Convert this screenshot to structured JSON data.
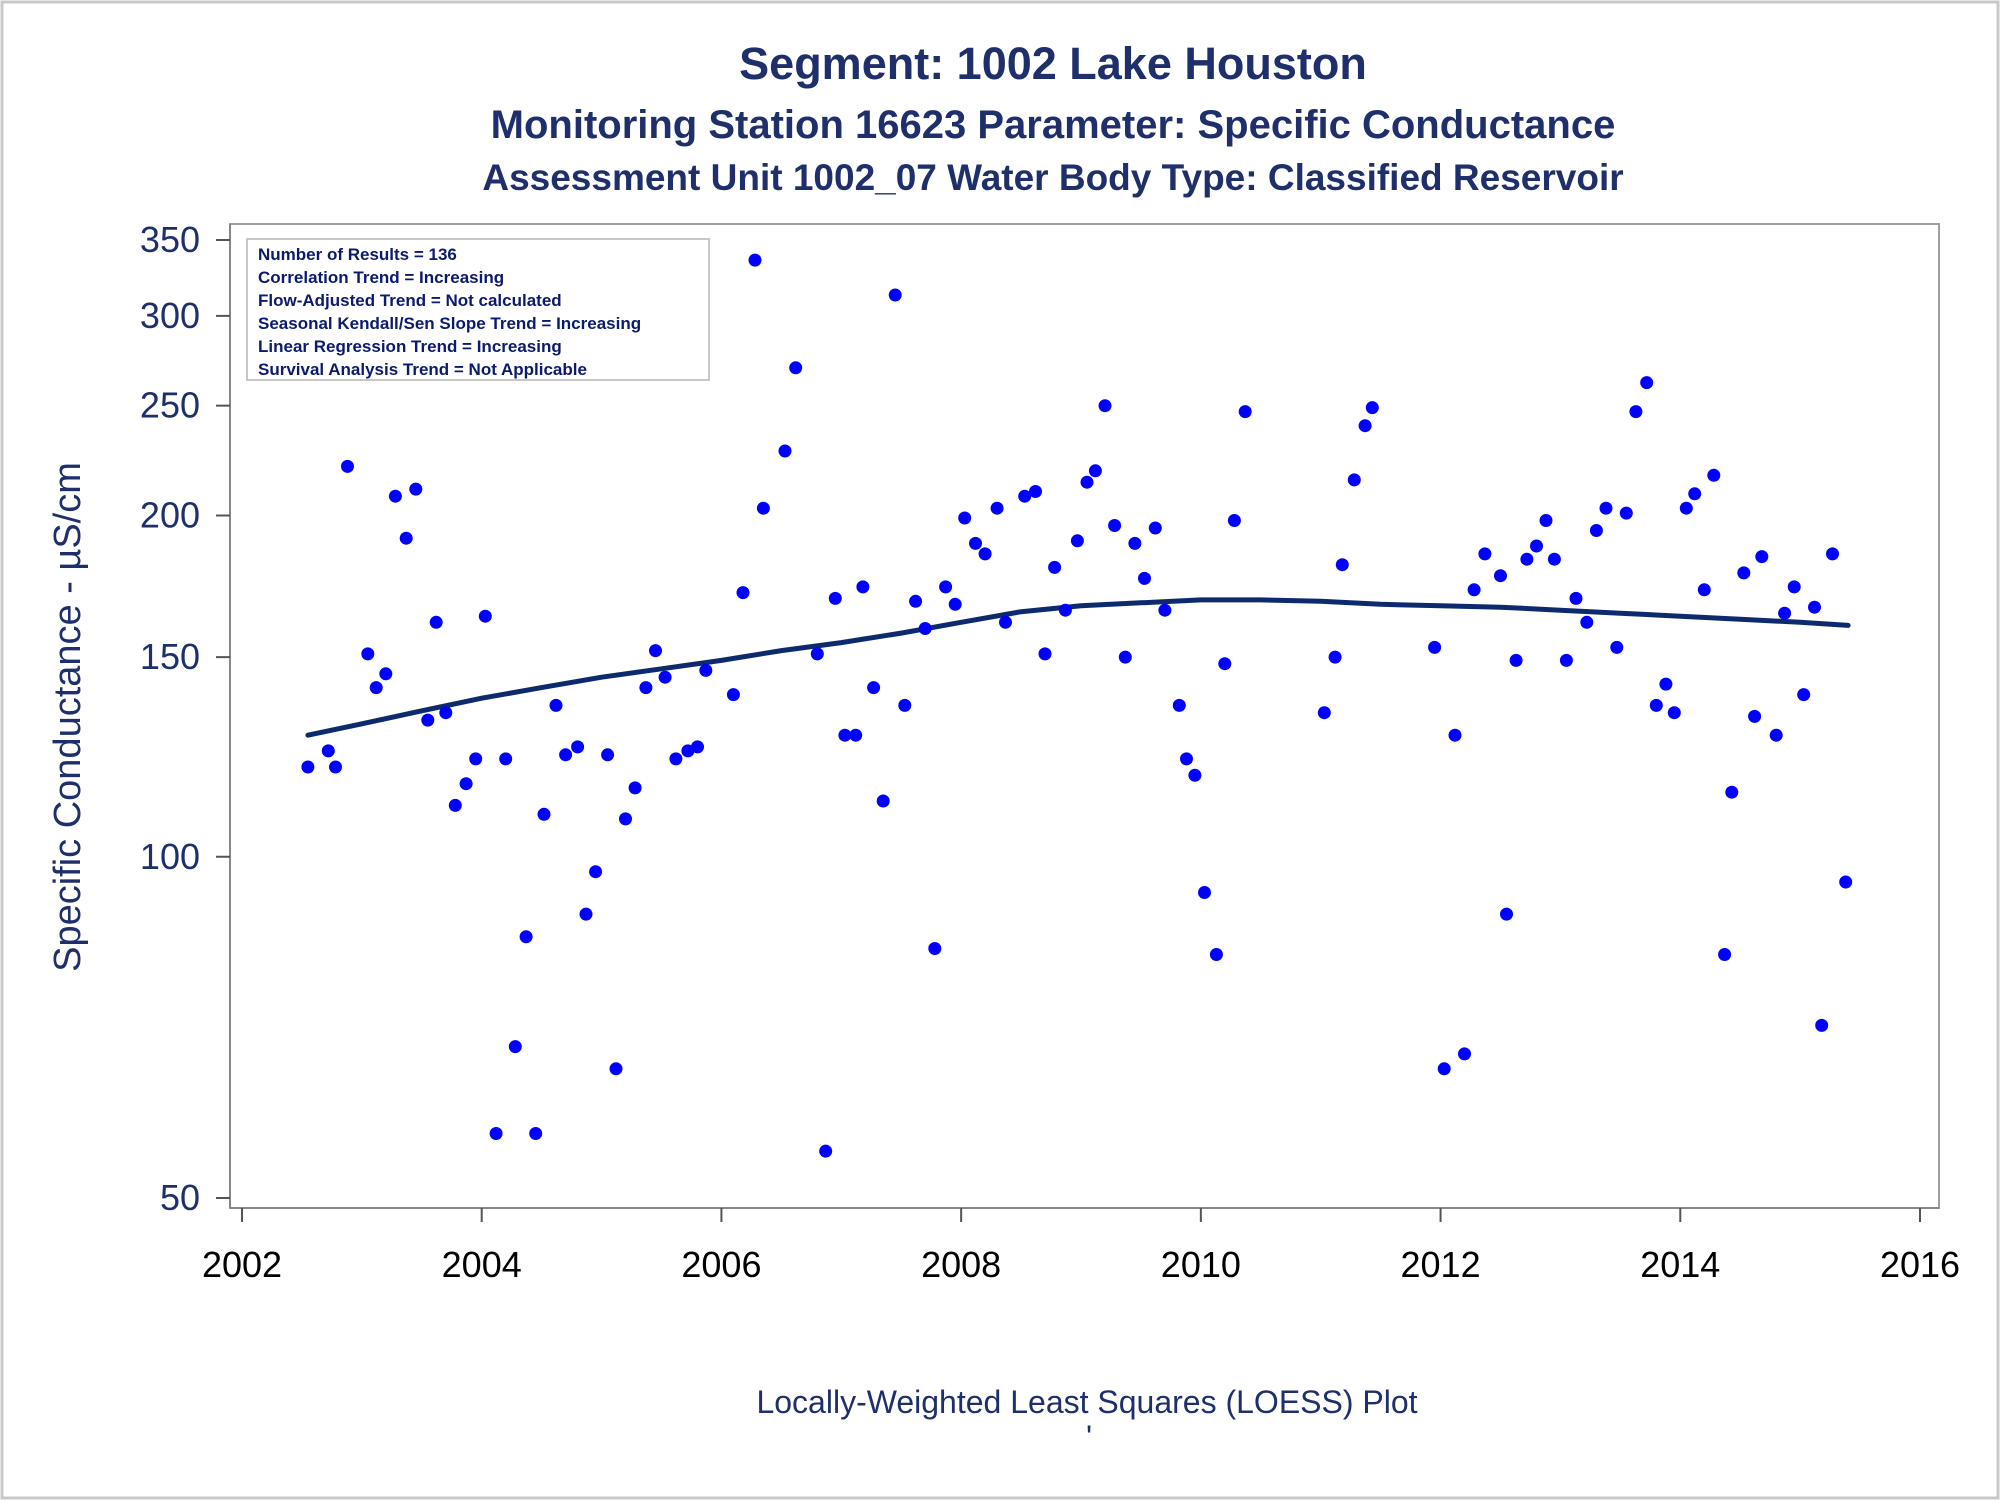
{
  "colors": {
    "text": "#1f2f6b",
    "point": "#0000ff",
    "line": "#0d2a6e",
    "frame": "#a0a0a0"
  },
  "chart_data": {
    "type": "scatter",
    "title": "Segment: 1002  Lake Houston",
    "subtitle": "Monitoring Station 16623 Parameter: Specific Conductance",
    "subtitle2": "Assessment Unit 1002_07   Water Body Type: Classified Reservoir",
    "xlabel": "Locally-Weighted Least Squares (LOESS) Plot",
    "ylabel": "Specific Conductance -  µS/cm",
    "footnote": "'",
    "yscale": "log",
    "xlim": [
      2002,
      2016
    ],
    "ylim": [
      50,
      350
    ],
    "xticks": [
      "2002",
      "2004",
      "2006",
      "2008",
      "2010",
      "2012",
      "2014",
      "2016"
    ],
    "yticks": [
      "50",
      "100",
      "150",
      "200",
      "250",
      "300",
      "350"
    ],
    "stats_box": [
      "Number of Results = 136",
      "Correlation Trend = Increasing",
      "Flow-Adjusted Trend = Not calculated",
      "Seasonal Kendall/Sen Slope Trend = Increasing",
      "Linear Regression Trend = Increasing",
      "Survival Analysis Trend = Not Applicable"
    ],
    "series": [
      {
        "type": "scatter",
        "points": [
          [
            2002.55,
            120
          ],
          [
            2002.72,
            124
          ],
          [
            2002.78,
            120
          ],
          [
            2002.88,
            221
          ],
          [
            2003.05,
            151
          ],
          [
            2003.12,
            141
          ],
          [
            2003.2,
            145
          ],
          [
            2003.28,
            208
          ],
          [
            2003.37,
            191
          ],
          [
            2003.45,
            211
          ],
          [
            2003.55,
            132
          ],
          [
            2003.62,
            161
          ],
          [
            2003.7,
            134
          ],
          [
            2003.78,
            111
          ],
          [
            2003.87,
            116
          ],
          [
            2003.95,
            122
          ],
          [
            2004.03,
            163
          ],
          [
            2004.12,
            57
          ],
          [
            2004.2,
            122
          ],
          [
            2004.28,
            68
          ],
          [
            2004.37,
            85
          ],
          [
            2004.45,
            57
          ],
          [
            2004.52,
            109
          ],
          [
            2004.62,
            136
          ],
          [
            2004.7,
            123
          ],
          [
            2004.8,
            125
          ],
          [
            2004.87,
            89
          ],
          [
            2004.95,
            97
          ],
          [
            2005.05,
            123
          ],
          [
            2005.12,
            65
          ],
          [
            2005.2,
            108
          ],
          [
            2005.28,
            115
          ],
          [
            2005.37,
            141
          ],
          [
            2005.45,
            152
          ],
          [
            2005.53,
            144
          ],
          [
            2005.62,
            122
          ],
          [
            2005.72,
            124
          ],
          [
            2005.8,
            125
          ],
          [
            2005.87,
            146
          ],
          [
            2006.1,
            139
          ],
          [
            2006.18,
            171
          ],
          [
            2006.28,
            336
          ],
          [
            2006.35,
            203
          ],
          [
            2006.53,
            228
          ],
          [
            2006.62,
            270
          ],
          [
            2006.8,
            151
          ],
          [
            2006.87,
            55
          ],
          [
            2006.95,
            169
          ],
          [
            2007.03,
            128
          ],
          [
            2007.12,
            128
          ],
          [
            2007.18,
            173
          ],
          [
            2007.27,
            141
          ],
          [
            2007.35,
            112
          ],
          [
            2007.45,
            313
          ],
          [
            2007.53,
            136
          ],
          [
            2007.62,
            168
          ],
          [
            2007.7,
            159
          ],
          [
            2007.78,
            83
          ],
          [
            2007.87,
            173
          ],
          [
            2007.95,
            167
          ],
          [
            2008.03,
            199
          ],
          [
            2008.12,
            189
          ],
          [
            2008.2,
            185
          ],
          [
            2008.3,
            203
          ],
          [
            2008.37,
            161
          ],
          [
            2008.53,
            208
          ],
          [
            2008.62,
            210
          ],
          [
            2008.7,
            151
          ],
          [
            2008.78,
            180
          ],
          [
            2008.87,
            165
          ],
          [
            2008.97,
            190
          ],
          [
            2009.05,
            214
          ],
          [
            2009.12,
            219
          ],
          [
            2009.2,
            250
          ],
          [
            2009.28,
            196
          ],
          [
            2009.37,
            150
          ],
          [
            2009.45,
            189
          ],
          [
            2009.53,
            176
          ],
          [
            2009.62,
            195
          ],
          [
            2009.7,
            165
          ],
          [
            2009.82,
            136
          ],
          [
            2009.88,
            122
          ],
          [
            2009.95,
            118
          ],
          [
            2010.03,
            93
          ],
          [
            2010.13,
            82
          ],
          [
            2010.2,
            148
          ],
          [
            2010.28,
            198
          ],
          [
            2010.37,
            247
          ],
          [
            2011.03,
            134
          ],
          [
            2011.12,
            150
          ],
          [
            2011.18,
            181
          ],
          [
            2011.28,
            215
          ],
          [
            2011.37,
            240
          ],
          [
            2011.43,
            249
          ],
          [
            2011.95,
            153
          ],
          [
            2012.03,
            65
          ],
          [
            2012.12,
            128
          ],
          [
            2012.2,
            67
          ],
          [
            2012.28,
            172
          ],
          [
            2012.37,
            185
          ],
          [
            2012.5,
            177
          ],
          [
            2012.55,
            89
          ],
          [
            2012.63,
            149
          ],
          [
            2012.72,
            183
          ],
          [
            2012.8,
            188
          ],
          [
            2012.88,
            198
          ],
          [
            2012.95,
            183
          ],
          [
            2013.05,
            149
          ],
          [
            2013.13,
            169
          ],
          [
            2013.22,
            161
          ],
          [
            2013.3,
            194
          ],
          [
            2013.38,
            203
          ],
          [
            2013.47,
            153
          ],
          [
            2013.55,
            201
          ],
          [
            2013.63,
            247
          ],
          [
            2013.72,
            262
          ],
          [
            2013.8,
            136
          ],
          [
            2013.88,
            142
          ],
          [
            2013.95,
            134
          ],
          [
            2014.05,
            203
          ],
          [
            2014.12,
            209
          ],
          [
            2014.2,
            172
          ],
          [
            2014.28,
            217
          ],
          [
            2014.37,
            82
          ],
          [
            2014.43,
            114
          ],
          [
            2014.53,
            178
          ],
          [
            2014.62,
            133
          ],
          [
            2014.68,
            184
          ],
          [
            2014.8,
            128
          ],
          [
            2014.87,
            164
          ],
          [
            2014.95,
            173
          ],
          [
            2015.03,
            139
          ],
          [
            2015.12,
            166
          ],
          [
            2015.18,
            71
          ],
          [
            2015.27,
            185
          ],
          [
            2015.38,
            95
          ]
        ]
      },
      {
        "type": "line",
        "smoother": "loess",
        "points": [
          [
            2002.55,
            128
          ],
          [
            2003.0,
            131
          ],
          [
            2003.5,
            134.5
          ],
          [
            2004.0,
            138
          ],
          [
            2004.5,
            141
          ],
          [
            2005.0,
            144
          ],
          [
            2005.5,
            146.5
          ],
          [
            2006.0,
            149
          ],
          [
            2006.5,
            152
          ],
          [
            2007.0,
            154.5
          ],
          [
            2007.5,
            157.5
          ],
          [
            2008.0,
            161
          ],
          [
            2008.5,
            164.5
          ],
          [
            2009.0,
            166.5
          ],
          [
            2009.5,
            167.5
          ],
          [
            2010.0,
            168.5
          ],
          [
            2010.5,
            168.5
          ],
          [
            2011.0,
            168
          ],
          [
            2011.5,
            167
          ],
          [
            2012.0,
            166.5
          ],
          [
            2012.5,
            166
          ],
          [
            2013.0,
            165
          ],
          [
            2013.5,
            164
          ],
          [
            2014.0,
            163
          ],
          [
            2014.5,
            162
          ],
          [
            2015.0,
            161
          ],
          [
            2015.4,
            160
          ]
        ]
      }
    ]
  }
}
